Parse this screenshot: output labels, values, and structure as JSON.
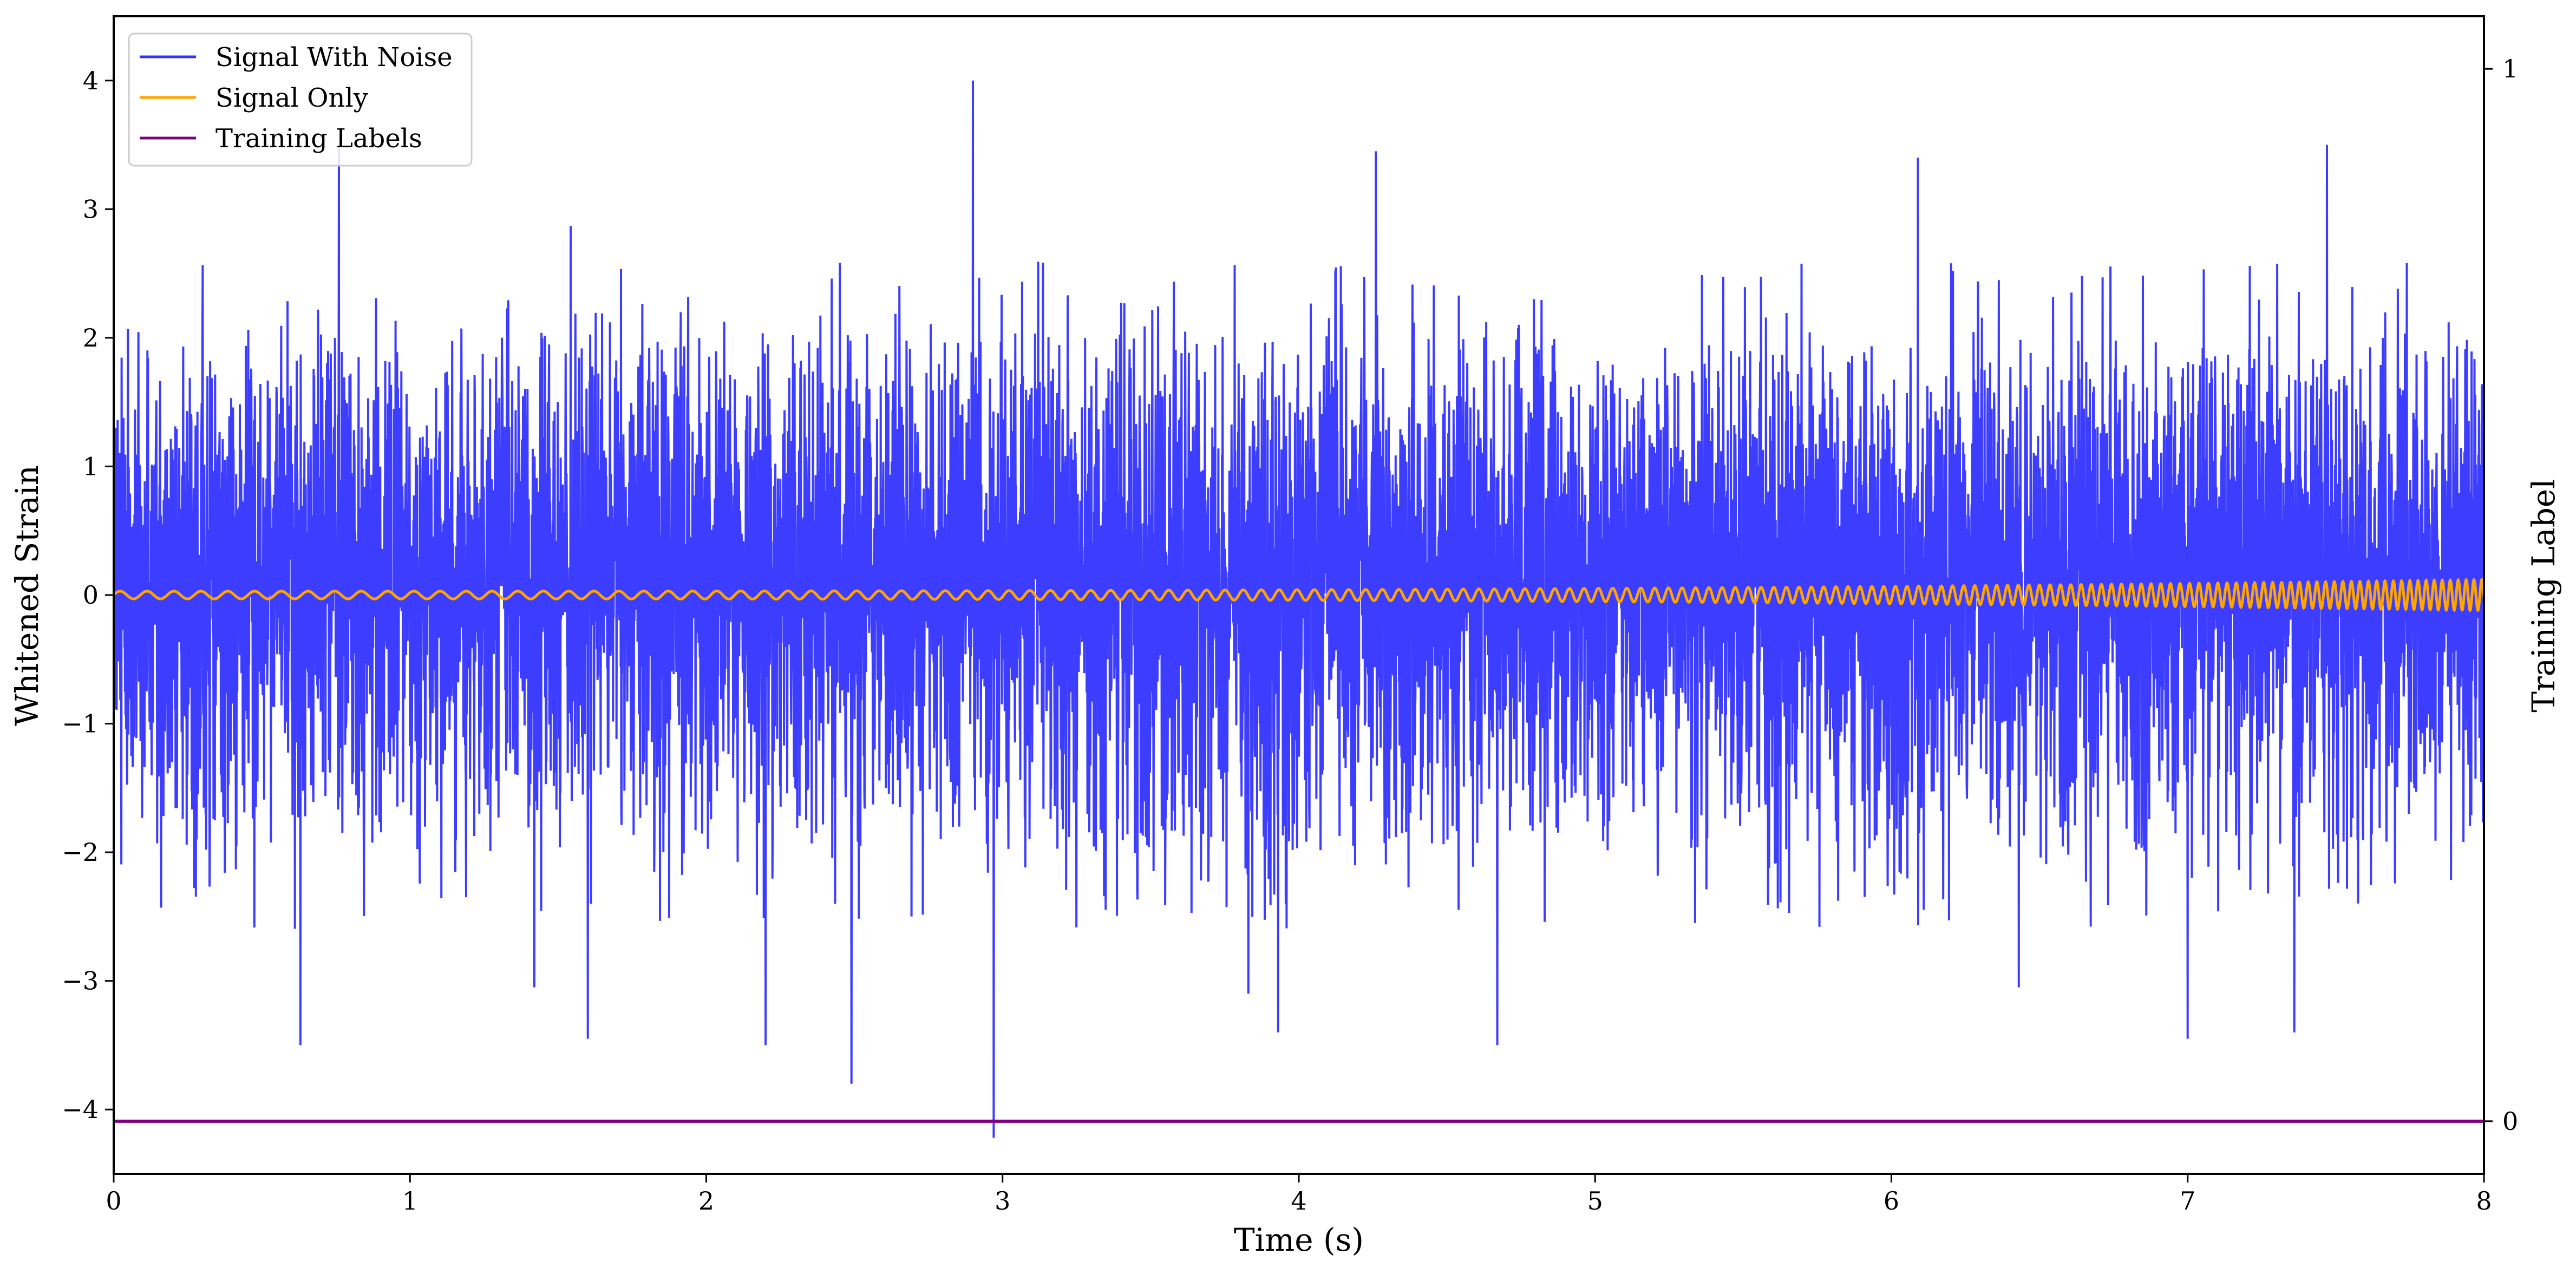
{
  "chart_data": {
    "type": "line",
    "xlabel": "Time (s)",
    "ylabel": "Whitened Strain",
    "y2label": "Training Label",
    "xlim": [
      0,
      8
    ],
    "ylim": [
      -4.5,
      4.5
    ],
    "y2lim": [
      -0.05,
      1.05
    ],
    "xticks": [
      0,
      1,
      2,
      3,
      4,
      5,
      6,
      7,
      8
    ],
    "yticks": [
      -4,
      -3,
      -2,
      -1,
      0,
      1,
      2,
      3,
      4
    ],
    "yticklabels": [
      "−4",
      "−3",
      "−2",
      "−1",
      "0",
      "1",
      "2",
      "3",
      "4"
    ],
    "y2ticks": [
      0,
      1
    ],
    "grid": false,
    "legend_position": "top-left",
    "series": [
      {
        "name": "Signal With Noise",
        "color": "#3333ff",
        "axis": "left",
        "description_stats": {
          "typical_band": [
            -1.6,
            2.2
          ],
          "max": 4.0,
          "min": -4.2
        },
        "peaks": [
          {
            "x": 0.63,
            "y": -3.5
          },
          {
            "x": 0.76,
            "y": 3.5
          },
          {
            "x": 1.42,
            "y": -3.05
          },
          {
            "x": 1.6,
            "y": -3.45
          },
          {
            "x": 2.2,
            "y": -3.5
          },
          {
            "x": 2.49,
            "y": -3.8
          },
          {
            "x": 2.9,
            "y": 4.0
          },
          {
            "x": 2.97,
            "y": -4.22
          },
          {
            "x": 3.83,
            "y": -3.1
          },
          {
            "x": 3.93,
            "y": -3.4
          },
          {
            "x": 4.26,
            "y": 3.45
          },
          {
            "x": 4.67,
            "y": -3.5
          },
          {
            "x": 6.09,
            "y": 3.4
          },
          {
            "x": 6.43,
            "y": -3.05
          },
          {
            "x": 7.0,
            "y": -3.45
          },
          {
            "x": 7.36,
            "y": -3.4
          },
          {
            "x": 7.47,
            "y": 3.5
          }
        ]
      },
      {
        "name": "Signal Only",
        "color": "#ffa500",
        "axis": "left",
        "chirp": {
          "start_amplitude": 0.03,
          "end_amplitude": 0.12,
          "start_freq_hz": 11,
          "end_freq_hz": 38
        }
      },
      {
        "name": "Training Labels",
        "color": "#800080",
        "axis": "right",
        "x": [
          0,
          8
        ],
        "y": [
          0,
          0
        ]
      }
    ]
  }
}
